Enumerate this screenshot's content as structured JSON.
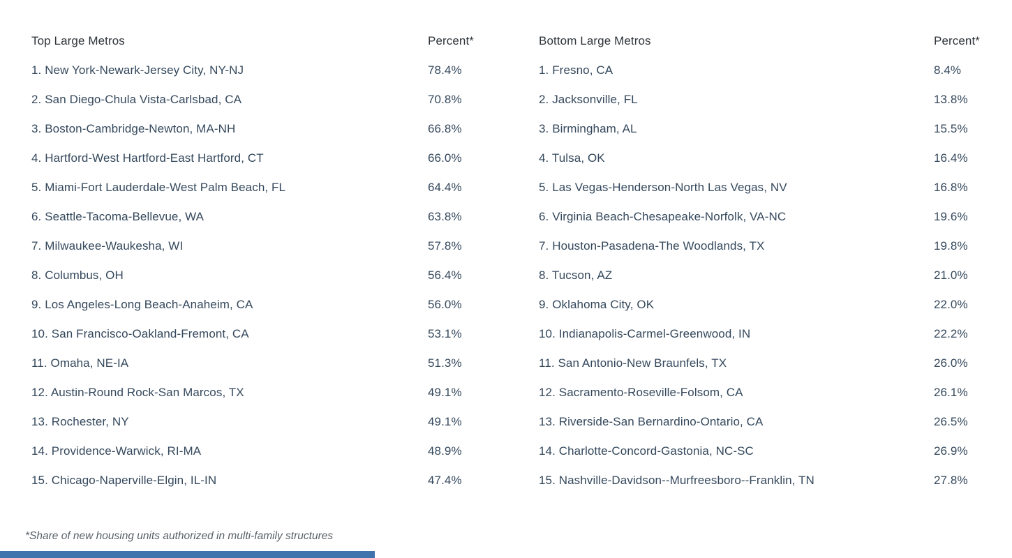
{
  "columns": [
    {
      "header": {
        "label": "Top Large Metros",
        "percent": "Percent*"
      },
      "rows": [
        {
          "label": "1. New York-Newark-Jersey City, NY-NJ",
          "percent": "78.4%"
        },
        {
          "label": "2. San Diego-Chula Vista-Carlsbad, CA",
          "percent": "70.8%"
        },
        {
          "label": "3. Boston-Cambridge-Newton, MA-NH",
          "percent": "66.8%"
        },
        {
          "label": "4. Hartford-West Hartford-East Hartford, CT",
          "percent": "66.0%"
        },
        {
          "label": "5. Miami-Fort Lauderdale-West Palm Beach, FL",
          "percent": "64.4%"
        },
        {
          "label": "6. Seattle-Tacoma-Bellevue, WA",
          "percent": "63.8%"
        },
        {
          "label": "7. Milwaukee-Waukesha, WI",
          "percent": "57.8%"
        },
        {
          "label": "8. Columbus, OH",
          "percent": "56.4%"
        },
        {
          "label": "9. Los Angeles-Long Beach-Anaheim, CA",
          "percent": "56.0%"
        },
        {
          "label": "10. San Francisco-Oakland-Fremont, CA",
          "percent": "53.1%"
        },
        {
          "label": "11. Omaha, NE-IA",
          "percent": "51.3%"
        },
        {
          "label": "12. Austin-Round Rock-San Marcos, TX",
          "percent": "49.1%"
        },
        {
          "label": "13. Rochester, NY",
          "percent": "49.1%"
        },
        {
          "label": "14. Providence-Warwick, RI-MA",
          "percent": "48.9%"
        },
        {
          "label": "15. Chicago-Naperville-Elgin, IL-IN",
          "percent": "47.4%"
        }
      ]
    },
    {
      "header": {
        "label": "Bottom Large Metros",
        "percent": "Percent*"
      },
      "rows": [
        {
          "label": "1. Fresno, CA",
          "percent": "8.4%"
        },
        {
          "label": "2. Jacksonville, FL",
          "percent": "13.8%"
        },
        {
          "label": "3. Birmingham, AL",
          "percent": "15.5%"
        },
        {
          "label": "4. Tulsa, OK",
          "percent": "16.4%"
        },
        {
          "label": "5. Las Vegas-Henderson-North Las Vegas, NV",
          "percent": "16.8%"
        },
        {
          "label": "6. Virginia Beach-Chesapeake-Norfolk, VA-NC",
          "percent": "19.6%"
        },
        {
          "label": "7. Houston-Pasadena-The Woodlands, TX",
          "percent": "19.8%"
        },
        {
          "label": "8. Tucson, AZ",
          "percent": "21.0%"
        },
        {
          "label": "9. Oklahoma City, OK",
          "percent": "22.0%"
        },
        {
          "label": "10. Indianapolis-Carmel-Greenwood, IN",
          "percent": "22.2%"
        },
        {
          "label": "11. San Antonio-New Braunfels, TX",
          "percent": "26.0%"
        },
        {
          "label": "12. Sacramento-Roseville-Folsom, CA",
          "percent": "26.1%"
        },
        {
          "label": "13. Riverside-San Bernardino-Ontario, CA",
          "percent": "26.5%"
        },
        {
          "label": "14. Charlotte-Concord-Gastonia, NC-SC",
          "percent": "26.9%"
        },
        {
          "label": "15. Nashville-Davidson--Murfreesboro--Franklin, TN",
          "percent": "27.8%"
        }
      ]
    }
  ],
  "footnote": "*Share of new housing units authorized in multi-family structures",
  "colors": {
    "background": "#ffffff",
    "header_text": "#2f3439",
    "row_text": "#34485c",
    "footnote_text": "#595f66",
    "accent_bar": "#4173ad"
  },
  "chart_data": [
    {
      "type": "table",
      "title": "Top Large Metros",
      "columns": [
        "Top Large Metros",
        "Percent*"
      ],
      "categories": [
        "New York-Newark-Jersey City, NY-NJ",
        "San Diego-Chula Vista-Carlsbad, CA",
        "Boston-Cambridge-Newton, MA-NH",
        "Hartford-West Hartford-East Hartford, CT",
        "Miami-Fort Lauderdale-West Palm Beach, FL",
        "Seattle-Tacoma-Bellevue, WA",
        "Milwaukee-Waukesha, WI",
        "Columbus, OH",
        "Los Angeles-Long Beach-Anaheim, CA",
        "San Francisco-Oakland-Fremont, CA",
        "Omaha, NE-IA",
        "Austin-Round Rock-San Marcos, TX",
        "Rochester, NY",
        "Providence-Warwick, RI-MA",
        "Chicago-Naperville-Elgin, IL-IN"
      ],
      "values": [
        78.4,
        70.8,
        66.8,
        66.0,
        64.4,
        63.8,
        57.8,
        56.4,
        56.0,
        53.1,
        51.3,
        49.1,
        49.1,
        48.9,
        47.4
      ],
      "note": "*Share of new housing units authorized in multi-family structures"
    },
    {
      "type": "table",
      "title": "Bottom Large Metros",
      "columns": [
        "Bottom Large Metros",
        "Percent*"
      ],
      "categories": [
        "Fresno, CA",
        "Jacksonville, FL",
        "Birmingham, AL",
        "Tulsa, OK",
        "Las Vegas-Henderson-North Las Vegas, NV",
        "Virginia Beach-Chesapeake-Norfolk, VA-NC",
        "Houston-Pasadena-The Woodlands, TX",
        "Tucson, AZ",
        "Oklahoma City, OK",
        "Indianapolis-Carmel-Greenwood, IN",
        "San Antonio-New Braunfels, TX",
        "Sacramento-Roseville-Folsom, CA",
        "Riverside-San Bernardino-Ontario, CA",
        "Charlotte-Concord-Gastonia, NC-SC",
        "Nashville-Davidson--Murfreesboro--Franklin, TN"
      ],
      "values": [
        8.4,
        13.8,
        15.5,
        16.4,
        16.8,
        19.6,
        19.8,
        21.0,
        22.0,
        22.2,
        26.0,
        26.1,
        26.5,
        26.9,
        27.8
      ],
      "note": "*Share of new housing units authorized in multi-family structures"
    }
  ]
}
